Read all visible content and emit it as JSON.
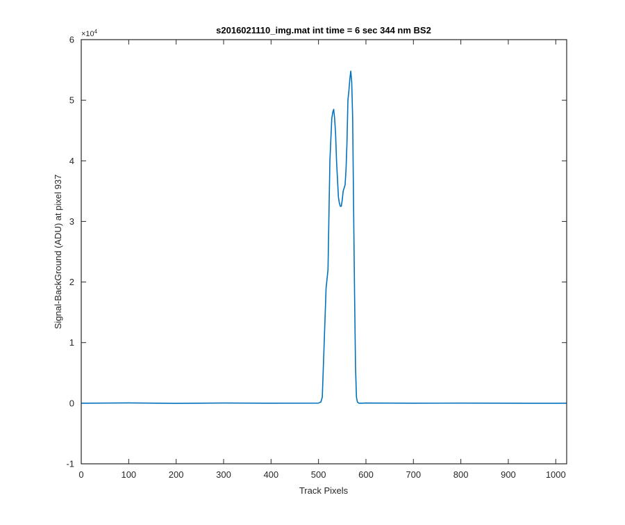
{
  "chart_data": {
    "type": "line",
    "title": "s2016021110_img.mat int time = 6 sec  344 nm BS2",
    "xlabel": "Track Pixels",
    "ylabel": "Signal-BackGround (ADU) at pixel 937",
    "xlim": [
      0,
      1023
    ],
    "ylim": [
      -10000,
      60000
    ],
    "x_ticks": [
      0,
      100,
      200,
      300,
      400,
      500,
      600,
      700,
      800,
      900,
      1000
    ],
    "x_tick_labels": [
      "0",
      "100",
      "200",
      "300",
      "400",
      "500",
      "600",
      "700",
      "800",
      "900",
      "1000"
    ],
    "y_ticks": [
      -10000,
      0,
      10000,
      20000,
      30000,
      40000,
      50000,
      60000
    ],
    "y_tick_labels": [
      "-1",
      "0",
      "1",
      "2",
      "3",
      "4",
      "5",
      "6"
    ],
    "y_exponent_label": "×10",
    "y_exponent_power": "4",
    "grid": false,
    "line_color": "#0072bd",
    "series": [
      {
        "x": [
          0,
          100,
          200,
          300,
          400,
          500,
          505,
          508,
          512,
          516,
          520,
          524,
          528,
          530,
          532,
          534,
          536,
          538,
          540,
          542,
          544,
          546,
          548,
          550,
          552,
          554,
          556,
          558,
          560,
          562,
          564,
          566,
          568,
          570,
          572,
          574,
          576,
          578,
          580,
          582,
          585,
          590,
          600,
          700,
          800,
          900,
          1000,
          1023
        ],
        "y": [
          0,
          50,
          -20,
          30,
          0,
          20,
          200,
          1000,
          10000,
          19000,
          22000,
          40000,
          47000,
          48000,
          48500,
          47000,
          44500,
          40000,
          37000,
          34000,
          33000,
          32500,
          32500,
          33500,
          35000,
          35500,
          36000,
          38500,
          43000,
          50000,
          51500,
          53500,
          54800,
          53000,
          47000,
          32000,
          18000,
          6000,
          1000,
          200,
          0,
          0,
          30,
          0,
          20,
          0,
          -10,
          0
        ]
      }
    ]
  }
}
